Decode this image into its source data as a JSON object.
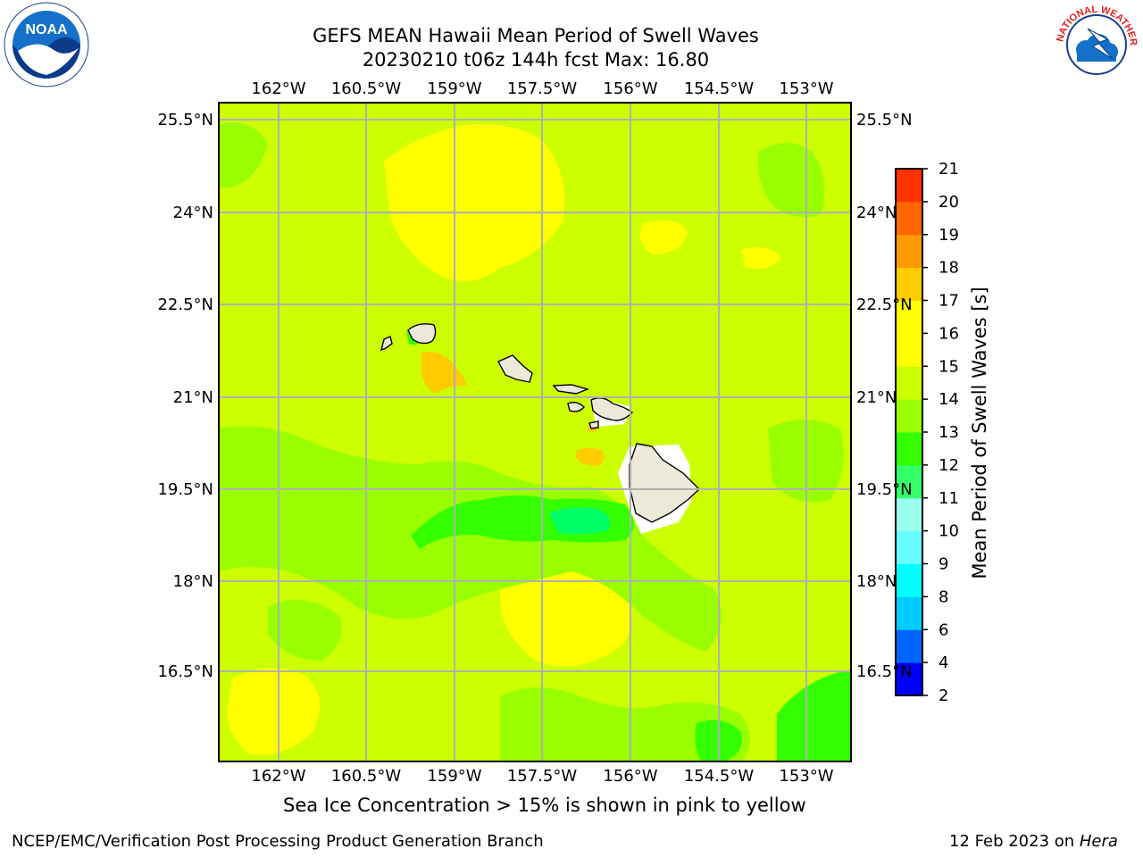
{
  "title": {
    "line1": "GEFS MEAN Hawaii Mean Period of Swell Waves",
    "line2": "20230210 t06z 144h fcst   Max: 16.80"
  },
  "map": {
    "lon_labels": [
      "162°W",
      "160.5°W",
      "159°W",
      "157.5°W",
      "156°W",
      "154.5°W",
      "153°W"
    ],
    "lat_labels": [
      "25.5°N",
      "24°N",
      "22.5°N",
      "21°N",
      "19.5°N",
      "18°N",
      "16.5°N"
    ],
    "field_colors": {
      "yellow": "#ffff00",
      "yellow_green": "#ccff00",
      "light_green": "#99ff00",
      "green": "#33ff00",
      "spring_green": "#00ff66",
      "orange": "#ffcc00",
      "land": "#ece9d8",
      "grid": "#b0b0b0"
    },
    "islands": [
      "Niihau",
      "Kauai",
      "Oahu",
      "Molokai",
      "Lanai",
      "Maui",
      "Kahoolawe",
      "Hawaii"
    ]
  },
  "colorbar": {
    "label": "Mean Period of Swell Waves [s]",
    "ticks": [
      "2",
      "4",
      "6",
      "8",
      "9",
      "10",
      "11",
      "12",
      "13",
      "14",
      "15",
      "16",
      "17",
      "18",
      "19",
      "20",
      "21"
    ],
    "colors": [
      "#0000ff",
      "#0066ff",
      "#00ccff",
      "#00ffff",
      "#66ffff",
      "#99ffee",
      "#33ff66",
      "#33ff00",
      "#99ff00",
      "#ccff00",
      "#ffff00",
      "#ffff00",
      "#ffcc00",
      "#ff9900",
      "#ff6600",
      "#ff3300",
      "#ff0000"
    ]
  },
  "note": "Sea Ice Concentration > 15% is shown in pink to yellow",
  "footer": {
    "left": "NCEP/EMC/Verification Post Processing Product Generation Branch",
    "right_prefix": "12 Feb 2023 on ",
    "right_host": "Hera"
  },
  "logos": {
    "noaa_text": "NOAA",
    "nws_text": "NATIONAL WEATHER SERVICE"
  }
}
